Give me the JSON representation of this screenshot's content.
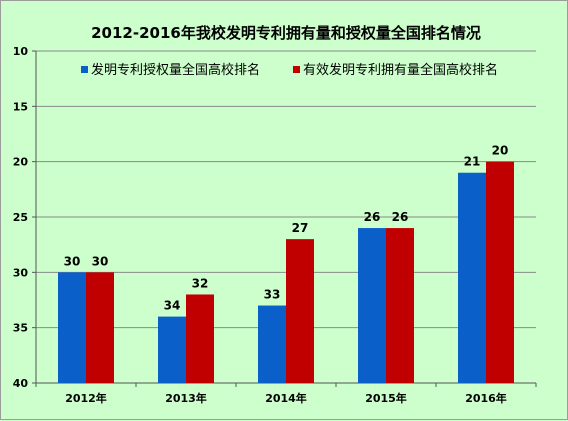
{
  "chart_data": {
    "type": "bar",
    "title": "2012-2016年我校发明专利拥有量和授权量全国排名情况",
    "xlabel": "",
    "ylabel": "",
    "categories": [
      "2012年",
      "2013年",
      "2014年",
      "2015年",
      "2016年"
    ],
    "series": [
      {
        "name": "发明专利授权量全国高校排名",
        "values": [
          30,
          34,
          33,
          26,
          21
        ],
        "color": "#0a5fc8"
      },
      {
        "name": "有效发明专利拥有量全国高校排名",
        "values": [
          30,
          32,
          27,
          26,
          20
        ],
        "color": "#c00000"
      }
    ],
    "ylim": [
      10,
      40
    ],
    "y_inverted": true,
    "y_ticks": [
      10,
      15,
      20,
      25,
      30,
      35,
      40
    ],
    "grid": true,
    "legend_position": "top",
    "data_labels": true
  }
}
